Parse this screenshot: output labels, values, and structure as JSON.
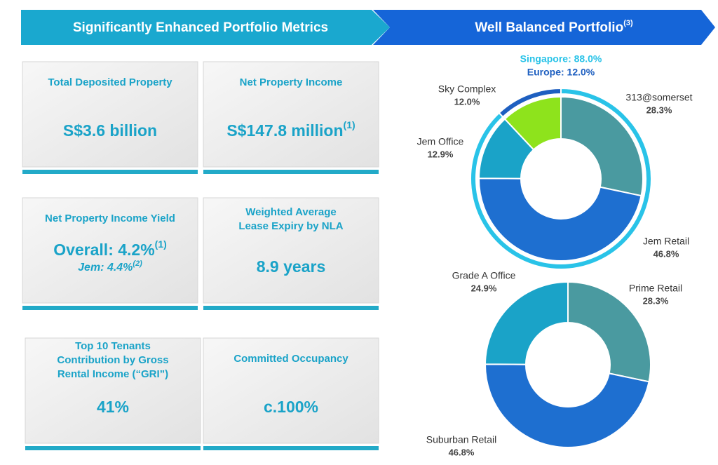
{
  "header": {
    "left": "Significantly Enhanced Portfolio Metrics",
    "right": "Well Balanced Portfolio",
    "right_sup": "(3)"
  },
  "metrics": [
    {
      "label": [
        "Total Deposited Property"
      ],
      "value": "S$3.6 billion"
    },
    {
      "label": [
        "Net Property Income"
      ],
      "value": "S$147.8 million",
      "sup": "(1)"
    },
    {
      "label": [
        "Net Property Income Yield"
      ],
      "value": "Overall: 4.2%",
      "sup": "(1)",
      "sub": "Jem: 4.4%",
      "sub_sup": "(2)"
    },
    {
      "label": [
        "Weighted Average",
        "Lease Expiry by NLA"
      ],
      "value": "8.9 years"
    },
    {
      "label": [
        "Top 10 Tenants",
        "Contribution by Gross",
        "Rental Income (“GRI”)"
      ],
      "value": "41%"
    },
    {
      "label": [
        "Committed Occupancy"
      ],
      "value": "c.100%"
    }
  ],
  "chart_data": [
    {
      "type": "donut",
      "categories": [
        "Sky Complex",
        "313@somerset",
        "Jem Retail",
        "Jem Office"
      ],
      "values": [
        12.0,
        28.3,
        46.8,
        12.9
      ],
      "value_labels": [
        "12.0%",
        "28.3%",
        "46.8%",
        "12.9%"
      ],
      "colors": [
        "#8ee31c",
        "#4a9aa0",
        "#1e6fd0",
        "#1aa3c8"
      ],
      "outer_ring": {
        "values": [
          12.0,
          88.0
        ],
        "value_labels": [
          "Europe: 12.0%",
          "Singapore: 88.0%"
        ],
        "colors": [
          "#1e5fc0",
          "#29c3e8"
        ]
      }
    },
    {
      "type": "donut",
      "categories": [
        "Prime Retail",
        "Suburban Retail",
        "Grade A Office"
      ],
      "values": [
        28.3,
        46.8,
        24.9
      ],
      "value_labels": [
        "28.3%",
        "46.8%",
        "24.9%"
      ],
      "colors": [
        "#4a9aa0",
        "#1e6fd0",
        "#1aa3c8"
      ]
    }
  ]
}
